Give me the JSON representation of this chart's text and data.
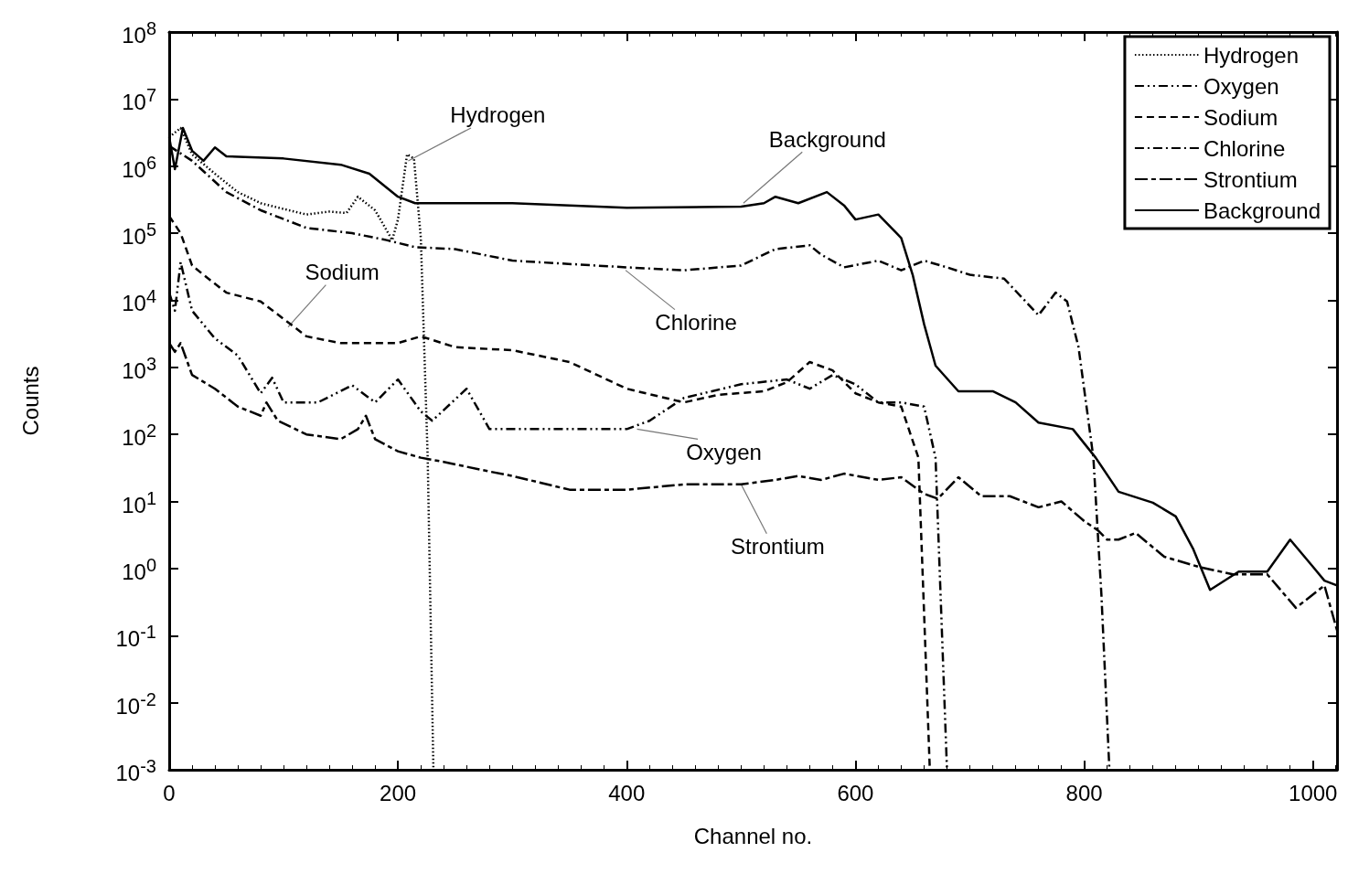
{
  "chart_data": {
    "type": "line",
    "xlabel": "Channel no.",
    "ylabel": "Counts",
    "log": "y",
    "xlim": [
      0,
      1021
    ],
    "xticks": [
      0,
      200,
      400,
      600,
      800,
      1000
    ],
    "ylim": [
      0.001,
      100000000
    ],
    "yticks": [
      {
        "value": 0.001,
        "label": "10$^{-3}$"
      },
      {
        "value": 0.01,
        "label": "10$^{-2}$"
      },
      {
        "value": 0.1,
        "label": "10$^{-1}$"
      },
      {
        "value": 1,
        "label": "10$^{0}$"
      },
      {
        "value": 10,
        "label": "10$^{1}$"
      },
      {
        "value": 100,
        "label": "10$^{2}$"
      },
      {
        "value": 1000,
        "label": "10$^{3}$"
      },
      {
        "value": 10000,
        "label": "10$^{4}$"
      },
      {
        "value": 100000,
        "label": "10$^{5}$"
      },
      {
        "value": 1000000,
        "label": "10$^{6}$"
      },
      {
        "value": 10000000,
        "label": "10$^{7}$"
      },
      {
        "value": 100000000,
        "label": "10$^{8}$"
      }
    ],
    "grid": false,
    "legend": "top right",
    "marker": "none",
    "series": [
      {
        "name": "Hydrogen",
        "color": "#000000",
        "line_style": "dotted",
        "x": [
          0,
          10,
          20,
          40,
          60,
          80,
          100,
          120,
          140,
          155,
          165,
          180,
          195,
          200,
          208,
          214,
          220,
          226,
          231
        ],
        "values": [
          2700000,
          3700000,
          1500000,
          770000,
          410000,
          280000,
          230000,
          190000,
          210000,
          200000,
          350000,
          220000,
          79000,
          160000,
          1500000,
          1300000,
          85000,
          45,
          0.001
        ]
      },
      {
        "name": "Oxygen",
        "color": "#000000",
        "line_style": "dashdotdot",
        "x": [
          0,
          5,
          10,
          20,
          40,
          60,
          80,
          90,
          100,
          130,
          160,
          180,
          200,
          220,
          230,
          260,
          280,
          320,
          350,
          400,
          420,
          450,
          500,
          540,
          560,
          580,
          600,
          620,
          640,
          660,
          670,
          680
        ],
        "values": [
          13000,
          7000,
          37000,
          7000,
          2700,
          1500,
          410,
          700,
          300,
          300,
          540,
          300,
          660,
          220,
          160,
          480,
          120,
          120,
          120,
          120,
          160,
          350,
          560,
          660,
          480,
          770,
          560,
          300,
          300,
          260,
          45,
          0.001
        ]
      },
      {
        "name": "Sodium",
        "color": "#000000",
        "line_style": "dashed",
        "x": [
          0,
          10,
          20,
          30,
          50,
          80,
          120,
          150,
          200,
          220,
          250,
          300,
          350,
          400,
          450,
          480,
          520,
          540,
          560,
          580,
          600,
          620,
          640,
          655,
          665
        ],
        "values": [
          180000,
          100000,
          33000,
          24000,
          13000,
          9600,
          2900,
          2300,
          2300,
          2900,
          2000,
          1800,
          1200,
          480,
          300,
          390,
          440,
          600,
          1200,
          900,
          410,
          300,
          260,
          45,
          0.001
        ]
      },
      {
        "name": "Chlorine",
        "color": "#000000",
        "line_style": "dashdot",
        "x": [
          0,
          20,
          50,
          80,
          120,
          160,
          190,
          215,
          250,
          300,
          400,
          450,
          500,
          530,
          560,
          570,
          590,
          620,
          640,
          660,
          680,
          700,
          730,
          760,
          775,
          785,
          795,
          808,
          815,
          822
        ],
        "values": [
          2000000,
          1200000,
          410000,
          220000,
          120000,
          100000,
          79000,
          62000,
          58000,
          39000,
          31000,
          28000,
          33000,
          58000,
          66000,
          48000,
          31000,
          39000,
          28000,
          39000,
          31000,
          24000,
          21000,
          6000,
          13000,
          9600,
          2000,
          45,
          0.41,
          0.001
        ]
      },
      {
        "name": "Strontium",
        "color": "#000000",
        "line_style": "longdash",
        "x": [
          0,
          5,
          10,
          20,
          40,
          60,
          80,
          85,
          95,
          120,
          150,
          165,
          172,
          180,
          200,
          220,
          240,
          260,
          280,
          300,
          350,
          400,
          450,
          500,
          530,
          550,
          570,
          590,
          620,
          640,
          660,
          672,
          690,
          710,
          735,
          760,
          780,
          800,
          812,
          820,
          830,
          845,
          870,
          900,
          930,
          960,
          985,
          1000,
          1010,
          1021
        ],
        "values": [
          2300,
          1700,
          2300,
          770,
          480,
          260,
          190,
          300,
          160,
          100,
          85,
          120,
          190,
          85,
          56,
          45,
          39,
          33,
          28,
          24,
          15,
          15,
          18,
          18,
          21,
          24,
          21,
          26,
          21,
          23,
          13,
          11,
          23,
          12,
          12,
          8.2,
          10,
          5.1,
          3.7,
          2.7,
          2.7,
          3.4,
          1.5,
          1.06,
          0.82,
          0.82,
          0.26,
          0.41,
          0.56,
          0.12
        ]
      },
      {
        "name": "Background",
        "color": "#000000",
        "line_style": "solid",
        "x": [
          0,
          5,
          12,
          20,
          30,
          40,
          50,
          100,
          150,
          175,
          200,
          215,
          300,
          400,
          500,
          520,
          530,
          550,
          575,
          590,
          600,
          620,
          640,
          650,
          660,
          670,
          690,
          720,
          740,
          760,
          790,
          810,
          830,
          860,
          880,
          895,
          910,
          935,
          960,
          980,
          1000,
          1010,
          1021
        ],
        "values": [
          2700000,
          900000,
          3700000,
          1700000,
          1200000,
          1900000,
          1400000,
          1300000,
          1050000,
          770000,
          350000,
          280000,
          280000,
          240000,
          250000,
          280000,
          350000,
          280000,
          410000,
          260000,
          160000,
          190000,
          85000,
          24000,
          4400,
          1060,
          440,
          440,
          300,
          150,
          120,
          45,
          14,
          9.6,
          6.0,
          2.0,
          0.48,
          0.9,
          0.9,
          2.7,
          1.06,
          0.66,
          0.56
        ]
      }
    ],
    "annotations": [
      {
        "text": "Hydrogen",
        "x": 209,
        "y": 1200000
      },
      {
        "text": "Background",
        "x": 502,
        "y": 280000
      },
      {
        "text": "Sodium",
        "x": 104,
        "y": 4000
      },
      {
        "text": "Chlorine",
        "x": 399,
        "y": 28000
      },
      {
        "text": "Oxygen",
        "x": 409,
        "y": 120
      },
      {
        "text": "Strontium",
        "x": 500,
        "y": 18
      }
    ]
  }
}
